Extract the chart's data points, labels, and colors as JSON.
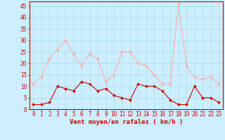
{
  "hours": [
    0,
    1,
    2,
    3,
    4,
    5,
    6,
    7,
    8,
    9,
    10,
    11,
    12,
    13,
    14,
    15,
    16,
    17,
    18,
    19,
    20,
    21,
    22,
    23
  ],
  "wind_avg": [
    2,
    2,
    3,
    10,
    9,
    8,
    12,
    11,
    8,
    9,
    6,
    5,
    4,
    11,
    10,
    10,
    8,
    4,
    2,
    2,
    10,
    5,
    5,
    3
  ],
  "wind_gust": [
    11,
    14,
    22,
    26,
    30,
    24,
    19,
    24,
    22,
    12,
    15,
    25,
    25,
    20,
    19,
    15,
    11,
    11,
    46,
    19,
    14,
    13,
    14,
    11
  ],
  "bg_color": "#cceeff",
  "grid_color": "#aadddd",
  "avg_color": "#cc0000",
  "gust_color": "#ffaaaa",
  "xlabel": "Vent moyen/en rafales ( km/h )",
  "xlabel_color": "#cc0000",
  "xlabel_fontsize": 6.5,
  "tick_color": "#cc0000",
  "tick_fontsize": 5.5,
  "ylim": [
    0,
    47
  ],
  "yticks": [
    0,
    5,
    10,
    15,
    20,
    25,
    30,
    35,
    40,
    45
  ],
  "marker": "D",
  "marker_size": 1.5,
  "line_width": 0.8
}
